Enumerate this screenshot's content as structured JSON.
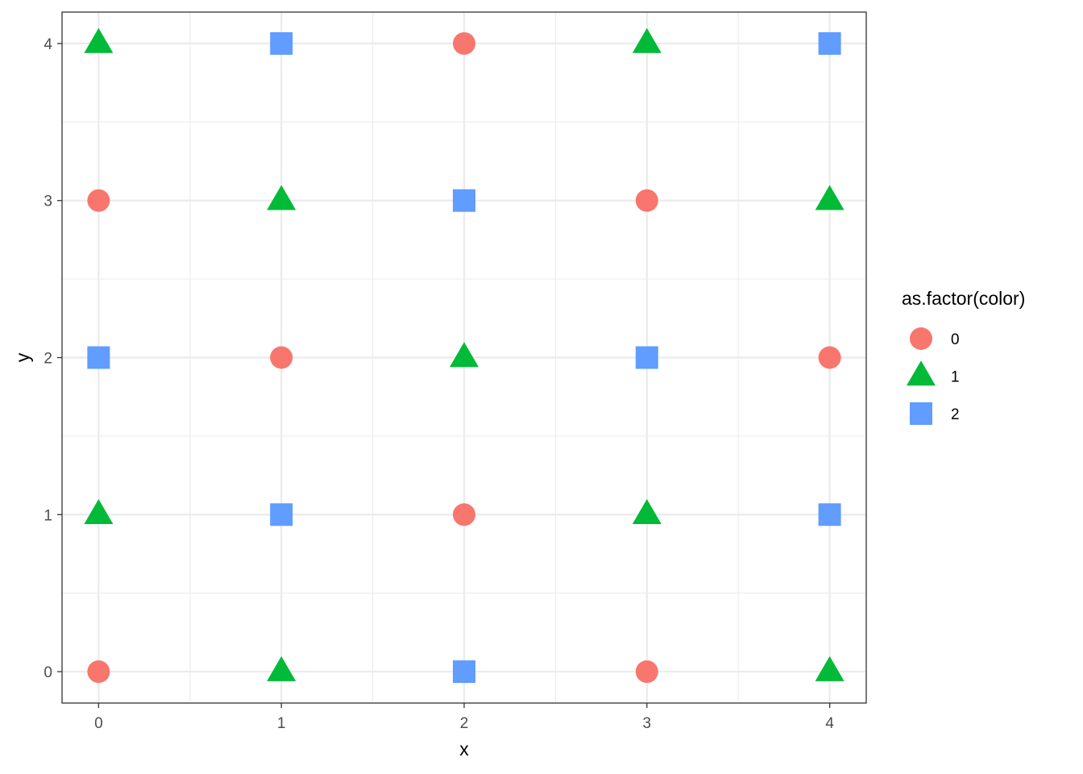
{
  "chart_data": {
    "type": "scatter",
    "xlabel": "x",
    "ylabel": "y",
    "xlim": [
      -0.2,
      4.2
    ],
    "ylim": [
      -0.2,
      4.2
    ],
    "x_ticks": [
      "0",
      "1",
      "2",
      "3",
      "4"
    ],
    "y_ticks": [
      "0",
      "1",
      "2",
      "3",
      "4"
    ],
    "grid": true,
    "legend": {
      "title": "as.factor(color)",
      "position": "right",
      "entries": [
        {
          "label": "0",
          "shape": "circle",
          "color": "#F8766D"
        },
        {
          "label": "1",
          "shape": "triangle",
          "color": "#00BA38"
        },
        {
          "label": "2",
          "shape": "square",
          "color": "#619CFF"
        }
      ]
    },
    "points": [
      {
        "x": 0,
        "y": 0,
        "group": "0"
      },
      {
        "x": 0,
        "y": 1,
        "group": "1"
      },
      {
        "x": 0,
        "y": 2,
        "group": "2"
      },
      {
        "x": 0,
        "y": 3,
        "group": "0"
      },
      {
        "x": 0,
        "y": 4,
        "group": "1"
      },
      {
        "x": 1,
        "y": 0,
        "group": "1"
      },
      {
        "x": 1,
        "y": 1,
        "group": "2"
      },
      {
        "x": 1,
        "y": 2,
        "group": "0"
      },
      {
        "x": 1,
        "y": 3,
        "group": "1"
      },
      {
        "x": 1,
        "y": 4,
        "group": "2"
      },
      {
        "x": 2,
        "y": 0,
        "group": "2"
      },
      {
        "x": 2,
        "y": 1,
        "group": "0"
      },
      {
        "x": 2,
        "y": 2,
        "group": "1"
      },
      {
        "x": 2,
        "y": 3,
        "group": "2"
      },
      {
        "x": 2,
        "y": 4,
        "group": "0"
      },
      {
        "x": 3,
        "y": 0,
        "group": "0"
      },
      {
        "x": 3,
        "y": 1,
        "group": "1"
      },
      {
        "x": 3,
        "y": 2,
        "group": "2"
      },
      {
        "x": 3,
        "y": 3,
        "group": "0"
      },
      {
        "x": 3,
        "y": 4,
        "group": "1"
      },
      {
        "x": 4,
        "y": 0,
        "group": "1"
      },
      {
        "x": 4,
        "y": 1,
        "group": "2"
      },
      {
        "x": 4,
        "y": 2,
        "group": "0"
      },
      {
        "x": 4,
        "y": 3,
        "group": "1"
      },
      {
        "x": 4,
        "y": 4,
        "group": "2"
      }
    ]
  }
}
